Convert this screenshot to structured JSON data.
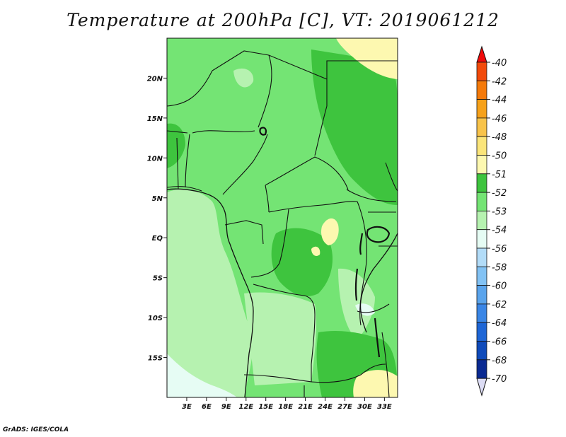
{
  "title": "Temperature at 200hPa [C], VT: 2019061212",
  "credit": "GrADS: IGES/COLA",
  "map": {
    "region": "Central Africa",
    "projection": "latlon",
    "lon_range": [
      0,
      35
    ],
    "lat_range": [
      -20,
      25
    ],
    "lat_ticks": [
      "20N",
      "15N",
      "10N",
      "5N",
      "EQ",
      "5S",
      "10S",
      "15S"
    ],
    "lon_ticks": [
      "3E",
      "6E",
      "9E",
      "12E",
      "15E",
      "18E",
      "21E",
      "24E",
      "27E",
      "30E",
      "33E"
    ]
  },
  "colorbar": {
    "labels": [
      "-40",
      "-42",
      "-44",
      "-46",
      "-48",
      "-50",
      "-51",
      "-52",
      "-53",
      "-54",
      "-56",
      "-58",
      "-60",
      "-62",
      "-64",
      "-66",
      "-68",
      "-70"
    ],
    "colors": [
      "#f00a0a",
      "#f24a0a",
      "#f57a0a",
      "#f6a11a",
      "#f8c34a",
      "#fbe57a",
      "#fdf8b0",
      "#3ec43e",
      "#74e474",
      "#b6f2b0",
      "#e6fcf4",
      "#b2dcf8",
      "#82c2f4",
      "#5aa4ec",
      "#3a86e6",
      "#1e66d6",
      "#0e4aba",
      "#0a2a92",
      "#0a0e5a",
      "#dcdcf4"
    ]
  },
  "fields": {
    "base_color": "#74e474",
    "warm_zone_color": "#3ec43e",
    "cold_zone_color": "#b6f2b0",
    "coldest_zone_color": "#e6fcf4",
    "hot_spot_color": "#fdf8b0"
  }
}
